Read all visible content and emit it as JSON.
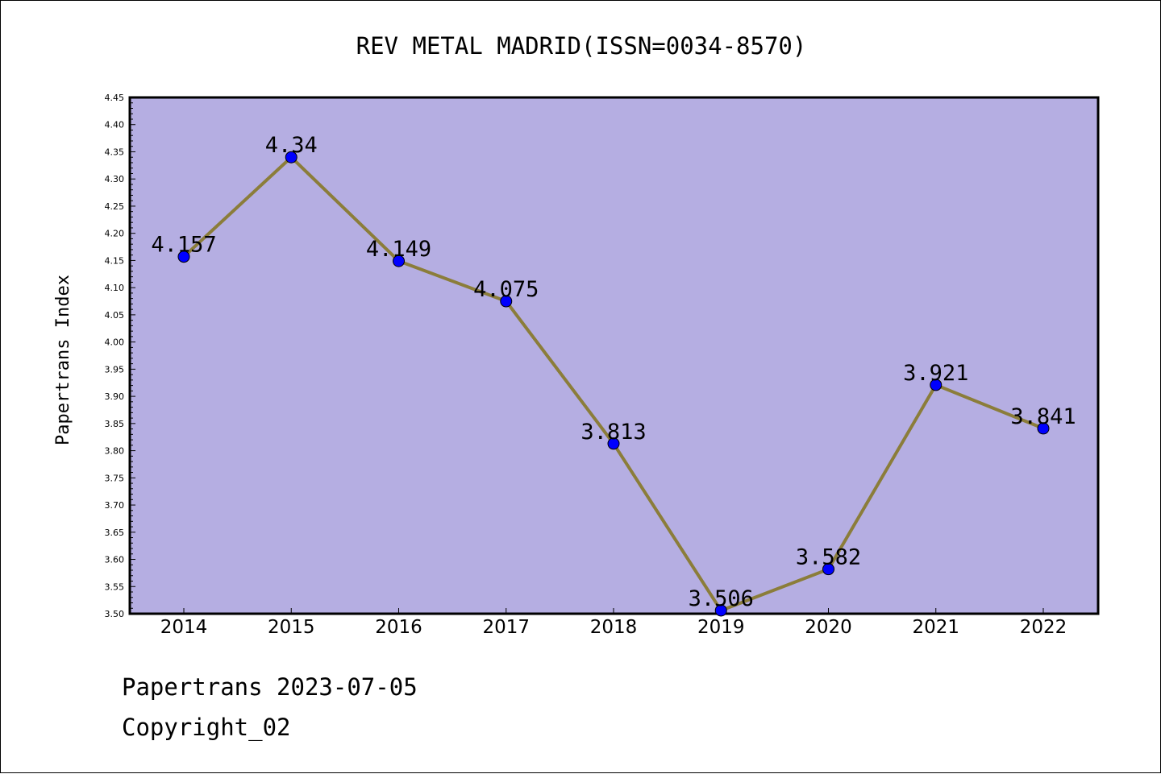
{
  "chart_data": {
    "type": "line",
    "title": "REV METAL MADRID(ISSN=0034-8570)",
    "xlabel": "",
    "ylabel": "Papertrans Index",
    "categories": [
      "2014",
      "2015",
      "2016",
      "2017",
      "2018",
      "2019",
      "2020",
      "2021",
      "2022"
    ],
    "values": [
      4.157,
      4.34,
      4.149,
      4.075,
      3.813,
      3.506,
      3.582,
      3.921,
      3.841
    ],
    "data_labels": [
      "4.157",
      "4.34",
      "4.149",
      "4.075",
      "3.813",
      "3.506",
      "3.582",
      "3.921",
      "3.841"
    ],
    "ylim": [
      3.5,
      4.45
    ],
    "yticks": [
      "3.50",
      "3.55",
      "3.60",
      "3.65",
      "3.70",
      "3.75",
      "3.80",
      "3.85",
      "3.90",
      "3.95",
      "4.00",
      "4.05",
      "4.10",
      "4.15",
      "4.20",
      "4.25",
      "4.30",
      "4.35",
      "4.40",
      "4.45"
    ],
    "grid": false,
    "colors": {
      "plot_background": "#b5aee2",
      "line": "#8b7d3a",
      "marker": "#0000ff"
    }
  },
  "footer": {
    "source": "Papertrans 2023-07-05",
    "copyright": "Copyright_02"
  }
}
